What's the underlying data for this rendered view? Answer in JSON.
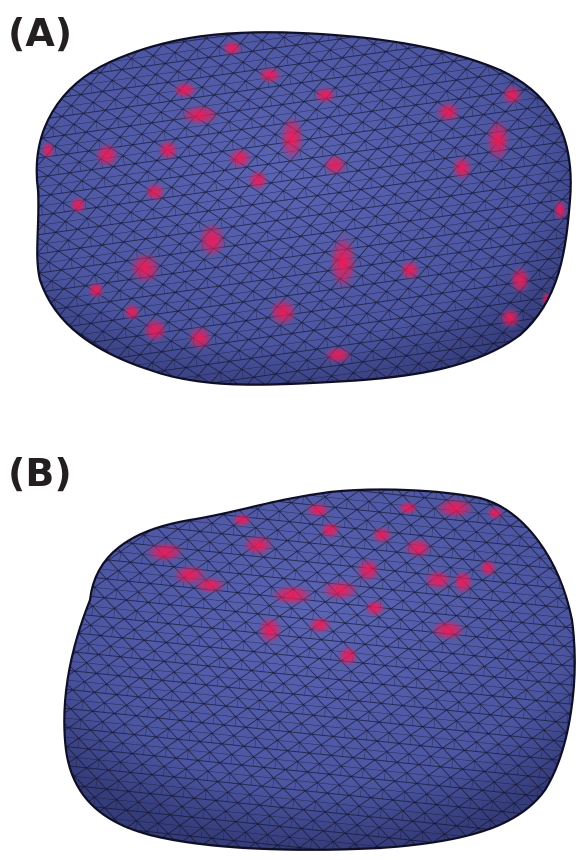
{
  "panels": [
    {
      "label": "(A)"
    },
    {
      "label": "(B)"
    }
  ],
  "colors": {
    "mesh_fill": "#4e58a4",
    "mesh_edge": "#0e0f26",
    "hotspot": "#ff1450",
    "background": "#ffffff"
  }
}
